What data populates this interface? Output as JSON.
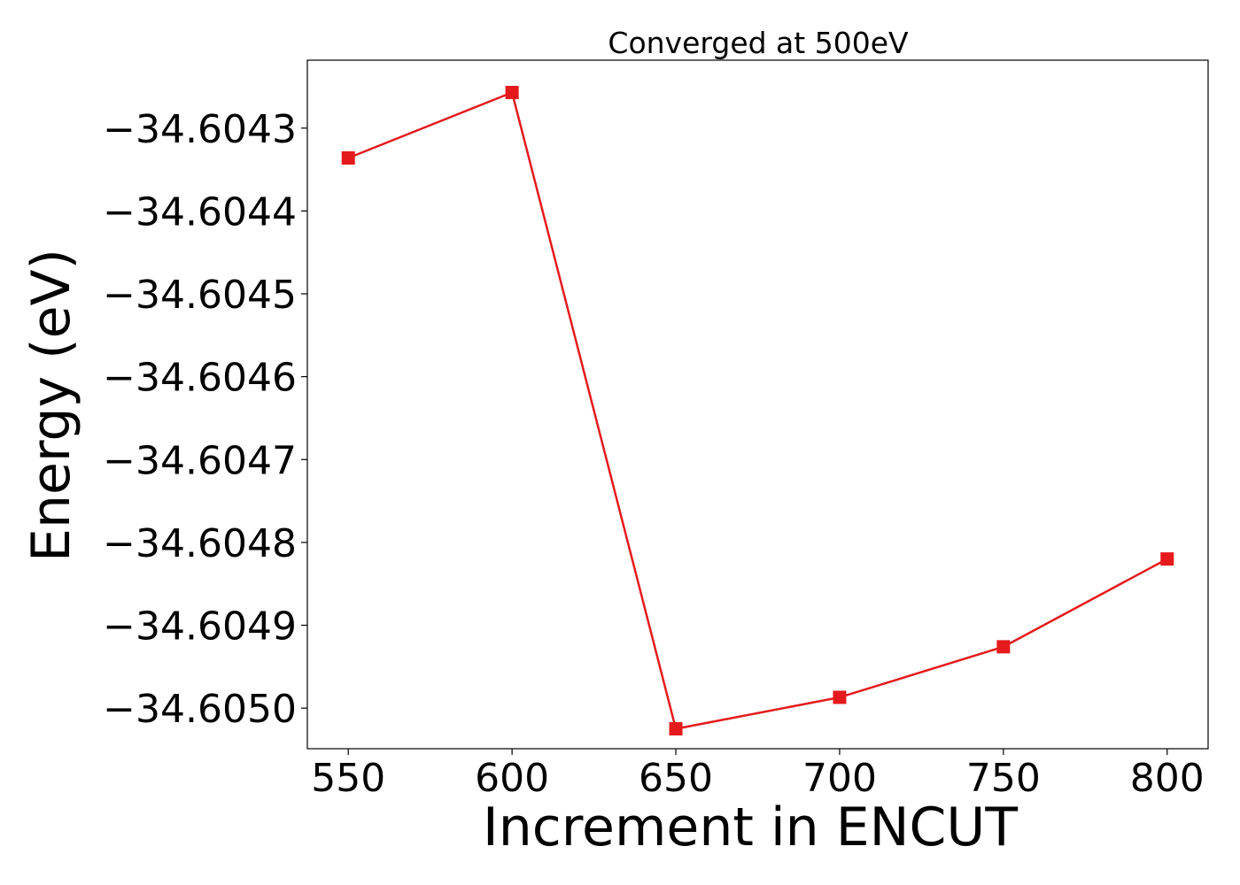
{
  "chart_data": {
    "type": "line",
    "title": "Converged at 500eV",
    "xlabel": "Increment in ENCUT",
    "ylabel": "Energy (eV)",
    "x": [
      550,
      600,
      650,
      700,
      750,
      800
    ],
    "series": [
      {
        "values": [
          -34.604336,
          -34.604257,
          -34.605025,
          -34.604987,
          -34.604926,
          -34.60482
        ],
        "color": "#e41a1c",
        "marker": "square"
      }
    ],
    "xlim": [
      537.5,
      812.5
    ],
    "ylim": [
      -34.605049,
      -34.604218
    ],
    "xticks": [
      550,
      600,
      650,
      700,
      750,
      800
    ],
    "xtick_labels": [
      "550",
      "600",
      "650",
      "700",
      "750",
      "800"
    ],
    "yticks": [
      -34.6043,
      -34.6044,
      -34.6045,
      -34.6046,
      -34.6047,
      -34.6048,
      -34.6049,
      -34.605
    ],
    "ytick_labels": [
      "−34.6043",
      "−34.6044",
      "−34.6045",
      "−34.6046",
      "−34.6047",
      "−34.6048",
      "−34.6049",
      "−34.6050"
    ],
    "grid": false,
    "legend": "none"
  }
}
